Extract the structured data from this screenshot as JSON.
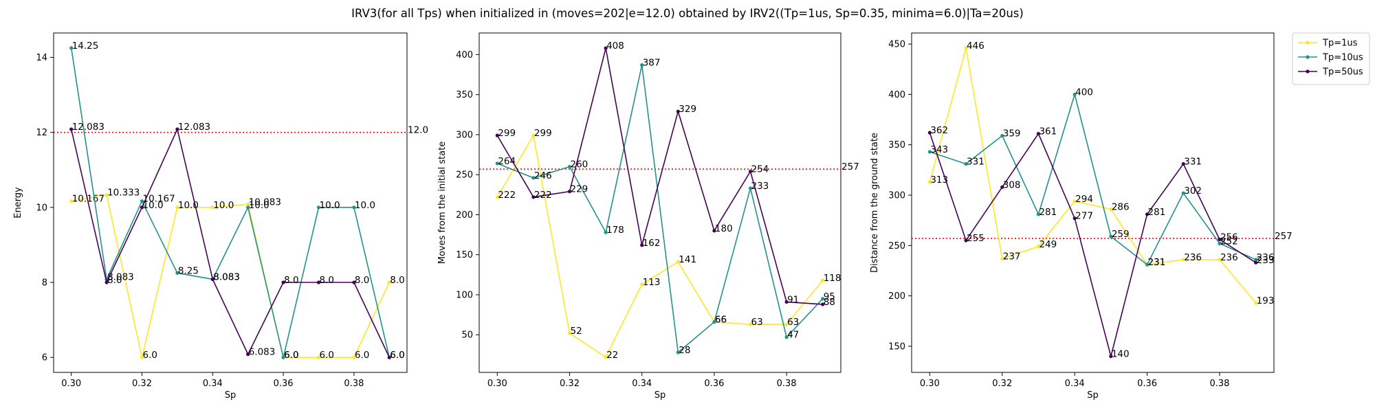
{
  "figure": {
    "title": "IRV3(for all Tps) when initialized in (moves=202|e=12.0) obtained by IRV2((Tp=1us, Sp=0.35, minima=6.0)|Ta=20us)"
  },
  "colors": {
    "Tp=1us": "#fde725",
    "Tp=10us": "#21918c",
    "Tp=50us": "#440154",
    "reference": "#ff0000"
  },
  "legend": {
    "placement": "outside-right-top",
    "entries": [
      "Tp=1us",
      "Tp=10us",
      "Tp=50us"
    ]
  },
  "chart_data": [
    {
      "type": "line",
      "title": "",
      "xlabel": "Sp",
      "ylabel": "Energy",
      "x": [
        0.3,
        0.31,
        0.32,
        0.33,
        0.34,
        0.35,
        0.36,
        0.37,
        0.38,
        0.39
      ],
      "xlim": [
        0.295,
        0.395
      ],
      "ylim": [
        5.6,
        14.65
      ],
      "xticks": [
        0.3,
        0.32,
        0.34,
        0.36,
        0.38
      ],
      "xtick_labels": [
        "0.30",
        "0.32",
        "0.34",
        "0.36",
        "0.38"
      ],
      "yticks": [
        6,
        8,
        10,
        12,
        14
      ],
      "ytick_labels": [
        "6",
        "8",
        "10",
        "12",
        "14"
      ],
      "grid": false,
      "series": [
        {
          "name": "Tp=1us",
          "values": [
            10.167,
            10.333,
            6.0,
            10.0,
            10.0,
            10.083,
            6.0,
            6.0,
            6.0,
            8.0
          ],
          "labels": [
            "10.167",
            "10.333",
            "6.0",
            "10.0",
            "10.0",
            "10.083",
            "6.0",
            "6.0",
            "6.0",
            "8.0"
          ]
        },
        {
          "name": "Tp=10us",
          "values": [
            14.25,
            8.083,
            10.167,
            8.25,
            8.083,
            10.0,
            6.0,
            10.0,
            10.0,
            6.0
          ],
          "labels": [
            "14.25",
            "8.083",
            "10.167",
            "8.25",
            "8.083",
            "10.0",
            "6.0",
            "10.0",
            "10.0",
            "6.0"
          ]
        },
        {
          "name": "Tp=50us",
          "values": [
            12.083,
            8.0,
            10.0,
            12.083,
            8.083,
            6.083,
            8.0,
            8.0,
            8.0,
            6.0
          ],
          "labels": [
            "12.083",
            "8.0",
            "10.0",
            "12.083",
            "8.083",
            "6.083",
            "8.0",
            "8.0",
            "8.0",
            "6.0"
          ]
        }
      ],
      "reference_line": {
        "value": 12.0,
        "label": "12.0",
        "style": "dotted"
      }
    },
    {
      "type": "line",
      "title": "",
      "xlabel": "Sp",
      "ylabel": "Moves from the initial state",
      "x": [
        0.3,
        0.31,
        0.32,
        0.33,
        0.34,
        0.35,
        0.36,
        0.37,
        0.38,
        0.39
      ],
      "xlim": [
        0.295,
        0.395
      ],
      "ylim": [
        3,
        427
      ],
      "xticks": [
        0.3,
        0.32,
        0.34,
        0.36,
        0.38
      ],
      "xtick_labels": [
        "0.30",
        "0.32",
        "0.34",
        "0.36",
        "0.38"
      ],
      "yticks": [
        50,
        100,
        150,
        200,
        250,
        300,
        350,
        400
      ],
      "ytick_labels": [
        "50",
        "100",
        "150",
        "200",
        "250",
        "300",
        "350",
        "400"
      ],
      "grid": false,
      "series": [
        {
          "name": "Tp=1us",
          "values": [
            222,
            299,
            52,
            22,
            113,
            141,
            66,
            63,
            63,
            118
          ],
          "labels": [
            "222",
            "299",
            "52",
            "22",
            "113",
            "141",
            "66",
            "63",
            "63",
            "118"
          ]
        },
        {
          "name": "Tp=10us",
          "values": [
            264,
            246,
            260,
            178,
            387,
            28,
            66,
            233,
            47,
            95
          ],
          "labels": [
            "264",
            "246",
            "260",
            "178",
            "387",
            "28",
            "66",
            "233",
            "47",
            "95"
          ]
        },
        {
          "name": "Tp=50us",
          "values": [
            299,
            222,
            229,
            408,
            162,
            329,
            180,
            254,
            91,
            88
          ],
          "labels": [
            "299",
            "222",
            "229",
            "408",
            "162",
            "329",
            "180",
            "254",
            "91",
            "88"
          ]
        }
      ],
      "reference_line": {
        "value": 257,
        "label": "257",
        "style": "dotted"
      }
    },
    {
      "type": "line",
      "title": "",
      "xlabel": "Sp",
      "ylabel": "Distance from the ground state",
      "x": [
        0.3,
        0.31,
        0.32,
        0.33,
        0.34,
        0.35,
        0.36,
        0.37,
        0.38,
        0.39
      ],
      "xlim": [
        0.295,
        0.395
      ],
      "ylim": [
        124,
        461
      ],
      "xticks": [
        0.3,
        0.32,
        0.34,
        0.36,
        0.38
      ],
      "xtick_labels": [
        "0.30",
        "0.32",
        "0.34",
        "0.36",
        "0.38"
      ],
      "yticks": [
        150,
        200,
        250,
        300,
        350,
        400,
        450
      ],
      "ytick_labels": [
        "150",
        "200",
        "250",
        "300",
        "350",
        "400",
        "450"
      ],
      "grid": false,
      "series": [
        {
          "name": "Tp=1us",
          "values": [
            313,
            446,
            237,
            249,
            294,
            286,
            231,
            236,
            236,
            193
          ],
          "labels": [
            "313",
            "446",
            "237",
            "249",
            "294",
            "286",
            "231",
            "236",
            "236",
            "193"
          ]
        },
        {
          "name": "Tp=10us",
          "values": [
            343,
            331,
            359,
            281,
            400,
            259,
            231,
            302,
            252,
            236
          ],
          "labels": [
            "343",
            "331",
            "359",
            "281",
            "400",
            "259",
            "231",
            "302",
            "252",
            "236"
          ]
        },
        {
          "name": "Tp=50us",
          "values": [
            362,
            255,
            308,
            361,
            277,
            140,
            281,
            331,
            256,
            233
          ],
          "labels": [
            "362",
            "255",
            "308",
            "361",
            "277",
            "140",
            "281",
            "331",
            "256",
            "233"
          ]
        }
      ],
      "reference_line": {
        "value": 257,
        "label": "257",
        "style": "dotted"
      }
    }
  ]
}
